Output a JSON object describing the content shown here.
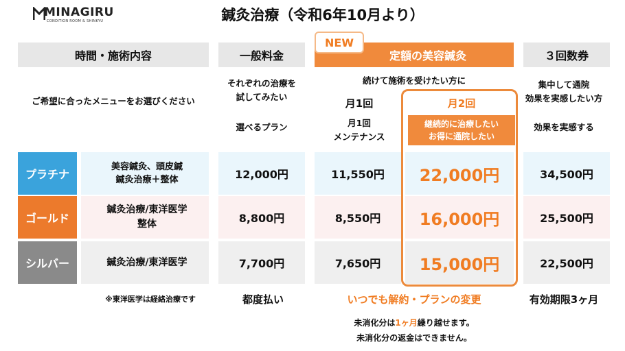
{
  "logo": {
    "name": "MINAGIRU",
    "sub": "CONDITION ROOM & SHINKYU"
  },
  "title": "鍼灸治療（令和6年10月より）",
  "colors": {
    "orange": "#f08a3c",
    "blue_tag": "#3aa3dc",
    "orange_tag": "#ec7a2c",
    "grey_tag": "#8a8a8a",
    "blue_bg": "#eaf6fc",
    "pink_bg": "#fcf0f0",
    "grey_bg": "#efefef"
  },
  "header": {
    "col1": "時間・施術内容",
    "col2": "一般料金",
    "col3": "定額の美容鍼灸",
    "col4": "３回数券",
    "new_badge": "NEW"
  },
  "sub": {
    "choose": "ご希望に合ったメニューをお選びください",
    "col2_line1": "それぞれの治療を",
    "col2_line2": "試してみたい",
    "col2_plan": "選べるプラン",
    "col3_top": "続けて施術を受けたい方に",
    "month1": "月1回",
    "month1_line1": "月1回",
    "month1_line2": "メンテナンス",
    "month2": "月2回",
    "month2_line1": "継続的に治療したい",
    "month2_line2": "お得に通院したい",
    "col4_line1": "集中して通院",
    "col4_line2": "効果を実感したい方",
    "col4_plan": "効果を実感する"
  },
  "plans": [
    {
      "tag": "プラチナ",
      "desc1": "美容鍼灸、頭皮鍼",
      "desc2": "鍼灸治療＋整体",
      "general": "12,000円",
      "month1": "11,550円",
      "month2": "22,000円",
      "ticket": "34,500円"
    },
    {
      "tag": "ゴールド",
      "desc1": "鍼灸治療/東洋医学",
      "desc2": "整体",
      "general": "8,800円",
      "month1": "8,550円",
      "month2": "16,000円",
      "ticket": "25,500円"
    },
    {
      "tag": "シルバー",
      "desc1": "鍼灸治療/東洋医学",
      "desc2": "",
      "general": "7,700円",
      "month1": "7,650円",
      "month2": "15,000円",
      "ticket": "22,500円"
    }
  ],
  "footer": {
    "note": "※東洋医学は経絡治療です",
    "general": "都度払い",
    "subscription": "いつでも解約・プランの変更",
    "ticket": "有効期限3ヶ月",
    "carry_pre": "未消化分は",
    "carry_hl": "1ヶ月",
    "carry_post": "繰り越せます。",
    "refund": "未消化分の返金はできません。"
  }
}
